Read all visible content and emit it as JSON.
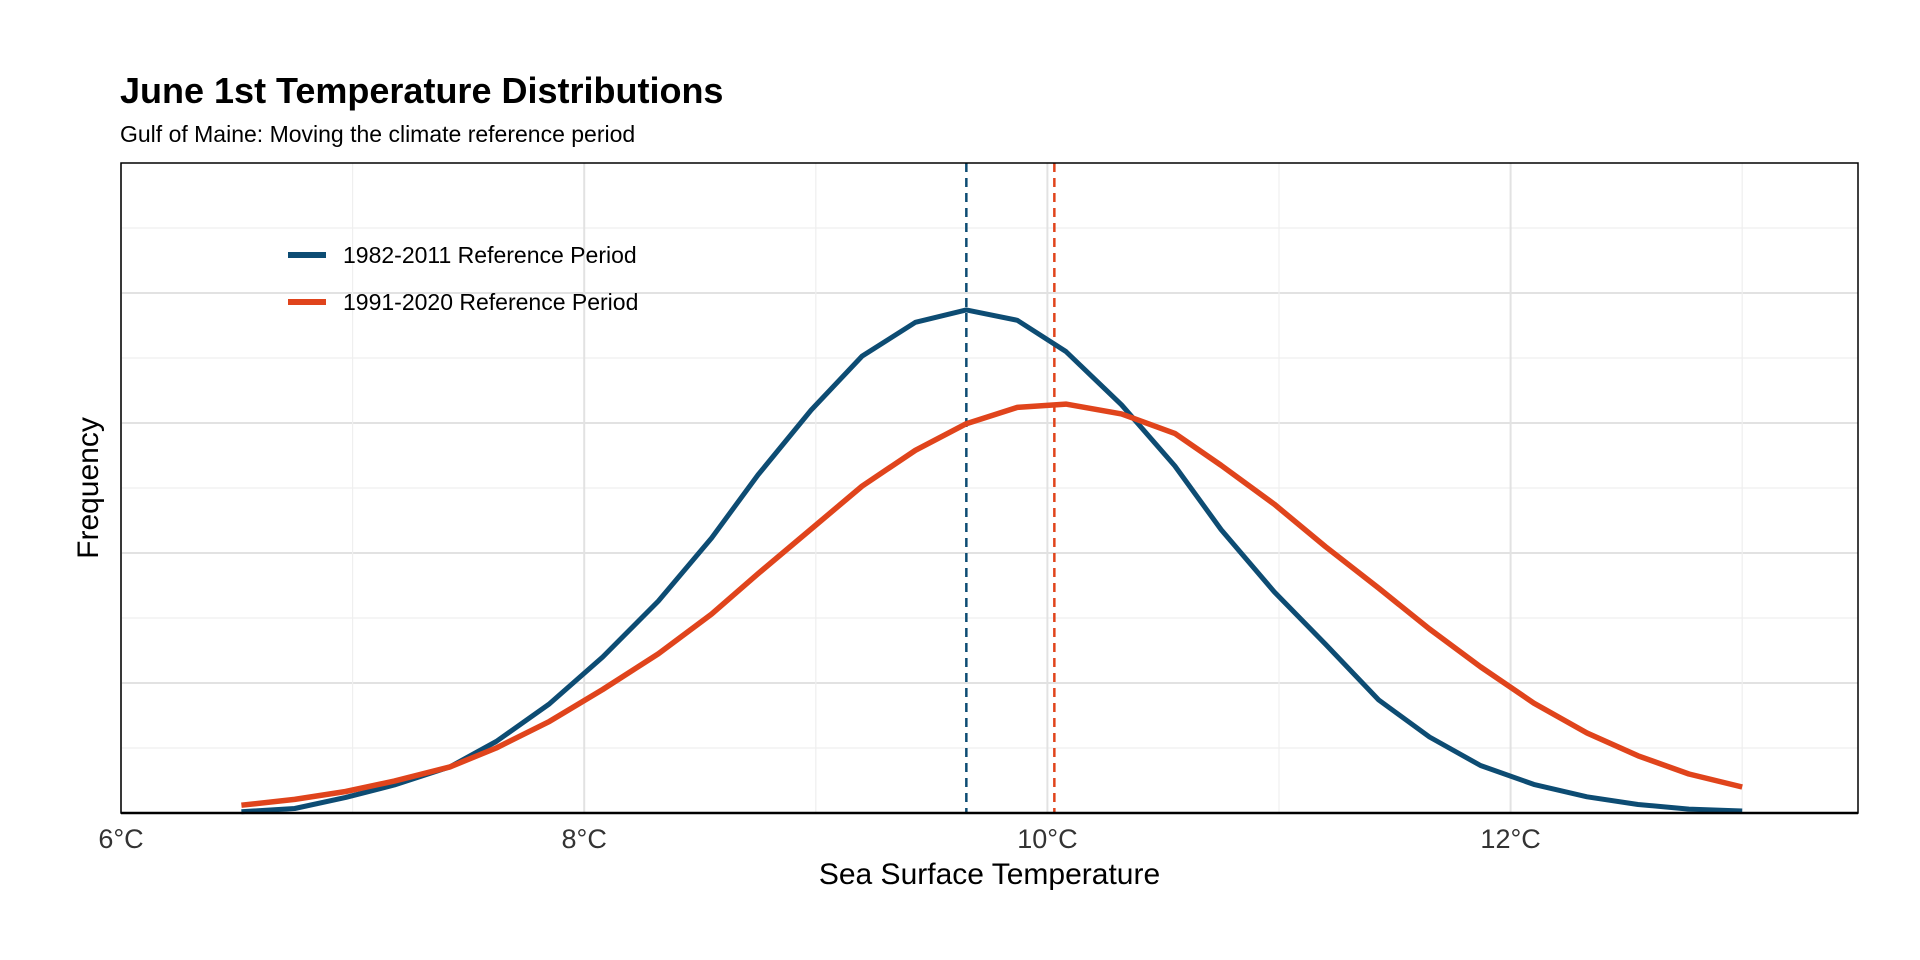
{
  "chart_data": {
    "type": "line",
    "title": "June 1st Temperature Distributions",
    "subtitle": "Gulf of Maine: Moving the climate reference period",
    "xlabel": "Sea Surface Temperature",
    "ylabel": "Frequency",
    "xlim": [
      6.0,
      13.5
    ],
    "ylim": [
      0,
      1.0
    ],
    "x_ticks": [
      {
        "value": 6,
        "label": "6°C"
      },
      {
        "value": 8,
        "label": "8°C"
      },
      {
        "value": 10,
        "label": "10°C"
      },
      {
        "value": 12,
        "label": "12°C"
      }
    ],
    "y_gridlines": [
      0.1,
      0.2,
      0.3,
      0.4,
      0.5,
      0.6,
      0.7,
      0.8,
      0.9
    ],
    "x_minor_gridlines": [
      7,
      9,
      11,
      13
    ],
    "grid": true,
    "y_tick_labels_shown": false,
    "legend_position": "top-left",
    "series": [
      {
        "name": "1982-2011 Reference Period",
        "color": "#0d4c73",
        "mean": 9.65,
        "points": [
          [
            6.52,
            0.002
          ],
          [
            6.75,
            0.007
          ],
          [
            6.97,
            0.024
          ],
          [
            7.18,
            0.043
          ],
          [
            7.42,
            0.071
          ],
          [
            7.62,
            0.11
          ],
          [
            7.85,
            0.168
          ],
          [
            8.08,
            0.24
          ],
          [
            8.32,
            0.326
          ],
          [
            8.55,
            0.423
          ],
          [
            8.75,
            0.52
          ],
          [
            8.98,
            0.62
          ],
          [
            9.2,
            0.703
          ],
          [
            9.43,
            0.755
          ],
          [
            9.65,
            0.774
          ],
          [
            9.87,
            0.758
          ],
          [
            10.08,
            0.71
          ],
          [
            10.32,
            0.628
          ],
          [
            10.55,
            0.534
          ],
          [
            10.75,
            0.436
          ],
          [
            10.98,
            0.34
          ],
          [
            11.2,
            0.26
          ],
          [
            11.43,
            0.174
          ],
          [
            11.65,
            0.117
          ],
          [
            11.87,
            0.073
          ],
          [
            12.1,
            0.044
          ],
          [
            12.33,
            0.025
          ],
          [
            12.55,
            0.013
          ],
          [
            12.77,
            0.006
          ],
          [
            13.0,
            0.003
          ]
        ]
      },
      {
        "name": "1991-2020 Reference Period",
        "color": "#e0441c",
        "mean": 10.03,
        "points": [
          [
            6.52,
            0.012
          ],
          [
            6.75,
            0.021
          ],
          [
            6.97,
            0.033
          ],
          [
            7.18,
            0.049
          ],
          [
            7.42,
            0.071
          ],
          [
            7.62,
            0.1
          ],
          [
            7.85,
            0.141
          ],
          [
            8.08,
            0.19
          ],
          [
            8.32,
            0.245
          ],
          [
            8.55,
            0.306
          ],
          [
            8.75,
            0.368
          ],
          [
            8.98,
            0.437
          ],
          [
            9.2,
            0.503
          ],
          [
            9.43,
            0.558
          ],
          [
            9.65,
            0.599
          ],
          [
            9.87,
            0.624
          ],
          [
            10.08,
            0.629
          ],
          [
            10.32,
            0.614
          ],
          [
            10.55,
            0.584
          ],
          [
            10.75,
            0.535
          ],
          [
            10.98,
            0.475
          ],
          [
            11.2,
            0.41
          ],
          [
            11.43,
            0.346
          ],
          [
            11.65,
            0.283
          ],
          [
            11.87,
            0.225
          ],
          [
            12.1,
            0.169
          ],
          [
            12.33,
            0.123
          ],
          [
            12.55,
            0.088
          ],
          [
            12.77,
            0.06
          ],
          [
            13.0,
            0.04
          ]
        ]
      }
    ]
  }
}
